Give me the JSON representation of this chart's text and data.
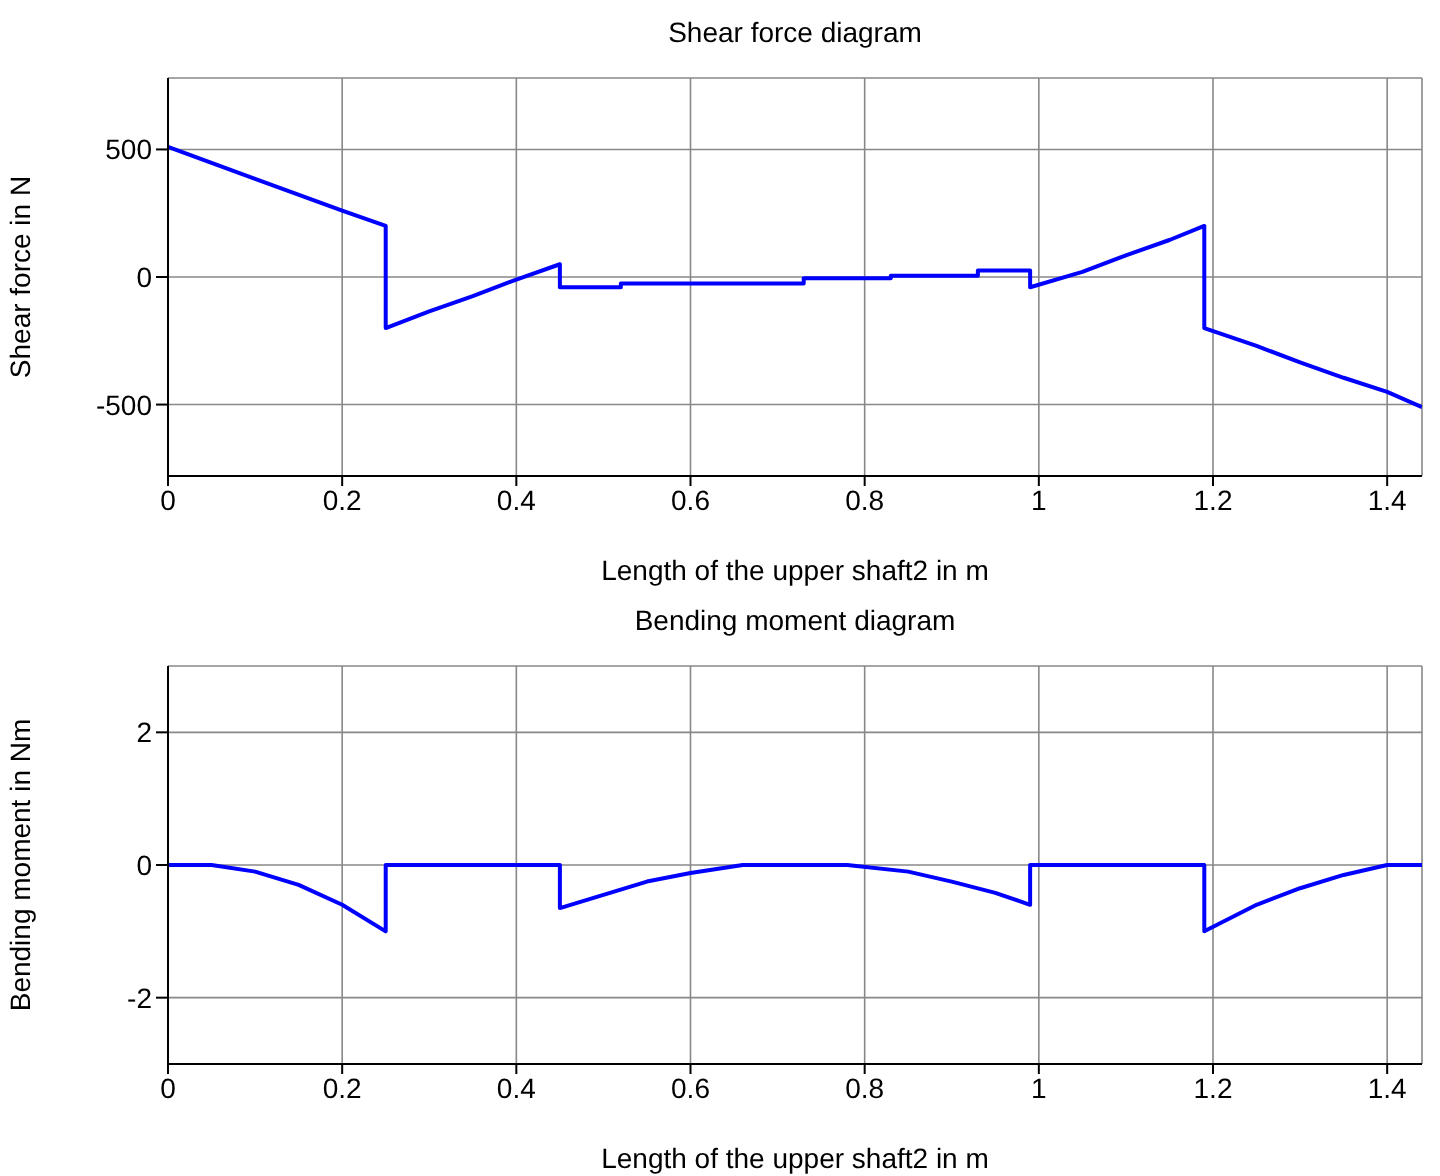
{
  "chart_data": [
    {
      "type": "line",
      "title": "Shear force diagram",
      "xlabel": "Length of the upper shaft2 in m",
      "ylabel": "Shear force in N",
      "x": [
        0,
        0.1,
        0.2,
        0.25,
        0.25,
        0.3,
        0.35,
        0.4,
        0.45,
        0.45,
        0.52,
        0.52,
        0.73,
        0.73,
        0.83,
        0.83,
        0.93,
        0.93,
        0.99,
        0.99,
        1.05,
        1.1,
        1.15,
        1.19,
        1.19,
        1.25,
        1.3,
        1.35,
        1.4,
        1.44
      ],
      "series": [
        {
          "color": "#0000ff",
          "values": [
            510,
            385,
            260,
            200,
            -200,
            -135,
            -75,
            -10,
            50,
            -40,
            -40,
            -25,
            -25,
            -5,
            -5,
            5,
            5,
            25,
            25,
            -40,
            20,
            85,
            145,
            200,
            -200,
            -270,
            -335,
            -395,
            -450,
            -510
          ]
        }
      ],
      "xlim": [
        0,
        1.44
      ],
      "xticks": [
        0,
        0.2,
        0.4,
        0.6,
        0.8,
        1,
        1.2,
        1.4
      ],
      "ylim": [
        -780,
        780
      ],
      "yticks": [
        -500,
        0,
        500
      ],
      "grid": true
    },
    {
      "type": "line",
      "title": "Bending moment diagram",
      "xlabel": "Length of the upper shaft2 in m",
      "ylabel": "Bending moment in Nm",
      "x": [
        0,
        0.05,
        0.1,
        0.15,
        0.2,
        0.25,
        0.25,
        0.45,
        0.45,
        0.5,
        0.55,
        0.6,
        0.66,
        0.78,
        0.85,
        0.9,
        0.95,
        0.99,
        0.99,
        1.19,
        1.19,
        1.25,
        1.3,
        1.35,
        1.4,
        1.44
      ],
      "series": [
        {
          "color": "#0000ff",
          "values": [
            0,
            0,
            -0.1,
            -0.3,
            -0.6,
            -1.0,
            0,
            0,
            -0.65,
            -0.45,
            -0.25,
            -0.12,
            0,
            0,
            -0.1,
            -0.25,
            -0.42,
            -0.6,
            0,
            0,
            -1.0,
            -0.6,
            -0.35,
            -0.15,
            0,
            0
          ]
        }
      ],
      "xlim": [
        0,
        1.44
      ],
      "xticks": [
        0,
        0.2,
        0.4,
        0.6,
        0.8,
        1,
        1.2,
        1.4
      ],
      "ylim": [
        -3,
        3
      ],
      "yticks": [
        -2,
        0,
        2
      ],
      "grid": true
    }
  ]
}
